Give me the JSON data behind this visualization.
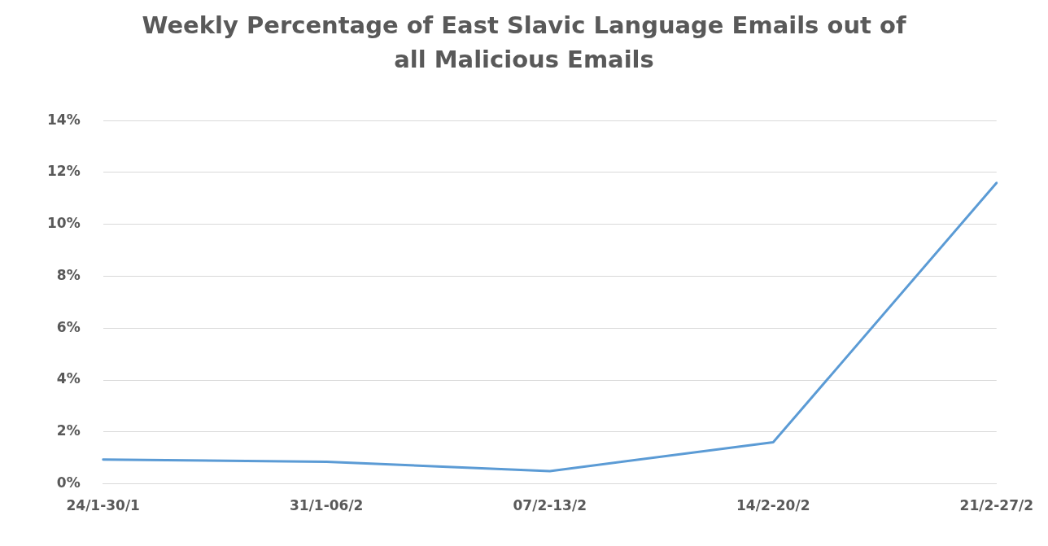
{
  "chart_data": {
    "type": "line",
    "title": "Weekly Percentage of East Slavic Language Emails out of all Malicious Emails",
    "categories": [
      "24/1-30/1",
      "31/1-06/2",
      "07/2-13/2",
      "14/2-20/2",
      "21/2-27/2"
    ],
    "series": [
      {
        "color": "#5b9bd5",
        "values": [
          0.94,
          0.85,
          0.49,
          1.6,
          11.6
        ]
      }
    ],
    "ylim": [
      0,
      14
    ],
    "yticks": [
      {
        "value": 0,
        "label": "0%"
      },
      {
        "value": 2,
        "label": "2%"
      },
      {
        "value": 4,
        "label": "4%"
      },
      {
        "value": 6,
        "label": "6%"
      },
      {
        "value": 8,
        "label": "8%"
      },
      {
        "value": 10,
        "label": "10%"
      },
      {
        "value": 12,
        "label": "12%"
      },
      {
        "value": 14,
        "label": "14%"
      }
    ],
    "grid": "y",
    "legend": false,
    "marker": "none",
    "line_style": "solid"
  }
}
